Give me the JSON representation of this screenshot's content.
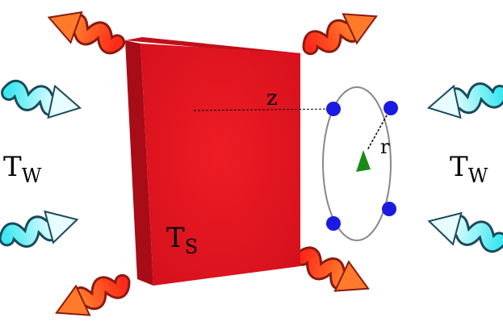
{
  "labels": {
    "left_temperature": {
      "main": "T",
      "sub": "W"
    },
    "right_temperature": {
      "main": "T",
      "sub": "W"
    },
    "surface_temperature": {
      "main": "T",
      "sub": "S"
    },
    "distance": "z",
    "radius": "r"
  }
}
